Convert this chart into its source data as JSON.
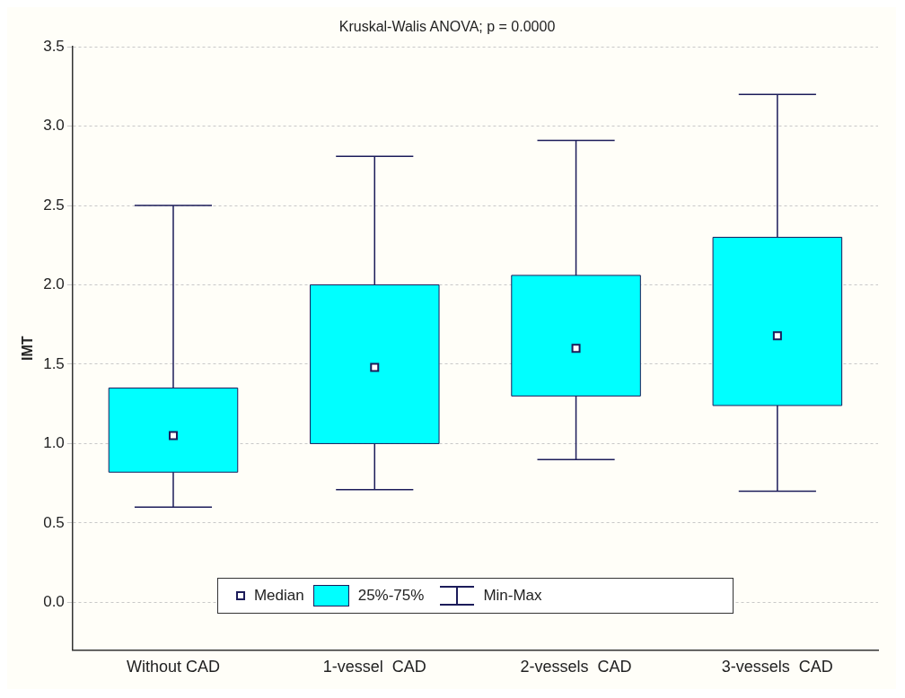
{
  "chart_data": {
    "type": "box",
    "title": "Kruskal-Walis ANOVA; p = 0.0000",
    "ylabel": "IMT",
    "categories": [
      "Without CAD",
      "1-vessel  CAD",
      "2-vessels  CAD",
      "3-vessels  CAD"
    ],
    "series": [
      {
        "name": "25%-75%",
        "color": "#00ffff",
        "boxes": [
          {
            "low": 0.6,
            "q1": 0.82,
            "median": 1.05,
            "q3": 1.35,
            "high": 2.5
          },
          {
            "low": 0.71,
            "q1": 1.0,
            "median": 1.48,
            "q3": 2.0,
            "high": 2.81
          },
          {
            "low": 0.9,
            "q1": 1.3,
            "median": 1.6,
            "q3": 2.06,
            "high": 2.91
          },
          {
            "low": 0.7,
            "q1": 1.24,
            "median": 1.68,
            "q3": 2.3,
            "high": 3.2
          }
        ]
      }
    ],
    "annotations": [
      "Median",
      "Min-Max"
    ],
    "legend": "bottom",
    "grid": "y",
    "ylim": [
      -0.3,
      3.5
    ],
    "yticks": [
      {
        "value": 0,
        "label": "0.0"
      },
      {
        "value": 0.5,
        "label": "0.5"
      },
      {
        "value": 1,
        "label": "1.0"
      },
      {
        "value": 1.5,
        "label": "1.5"
      },
      {
        "value": 2,
        "label": "2.0"
      },
      {
        "value": 2.5,
        "label": "2.5"
      },
      {
        "value": 3,
        "label": "3.0"
      },
      {
        "value": 3.5,
        "label": "3.5"
      }
    ]
  }
}
